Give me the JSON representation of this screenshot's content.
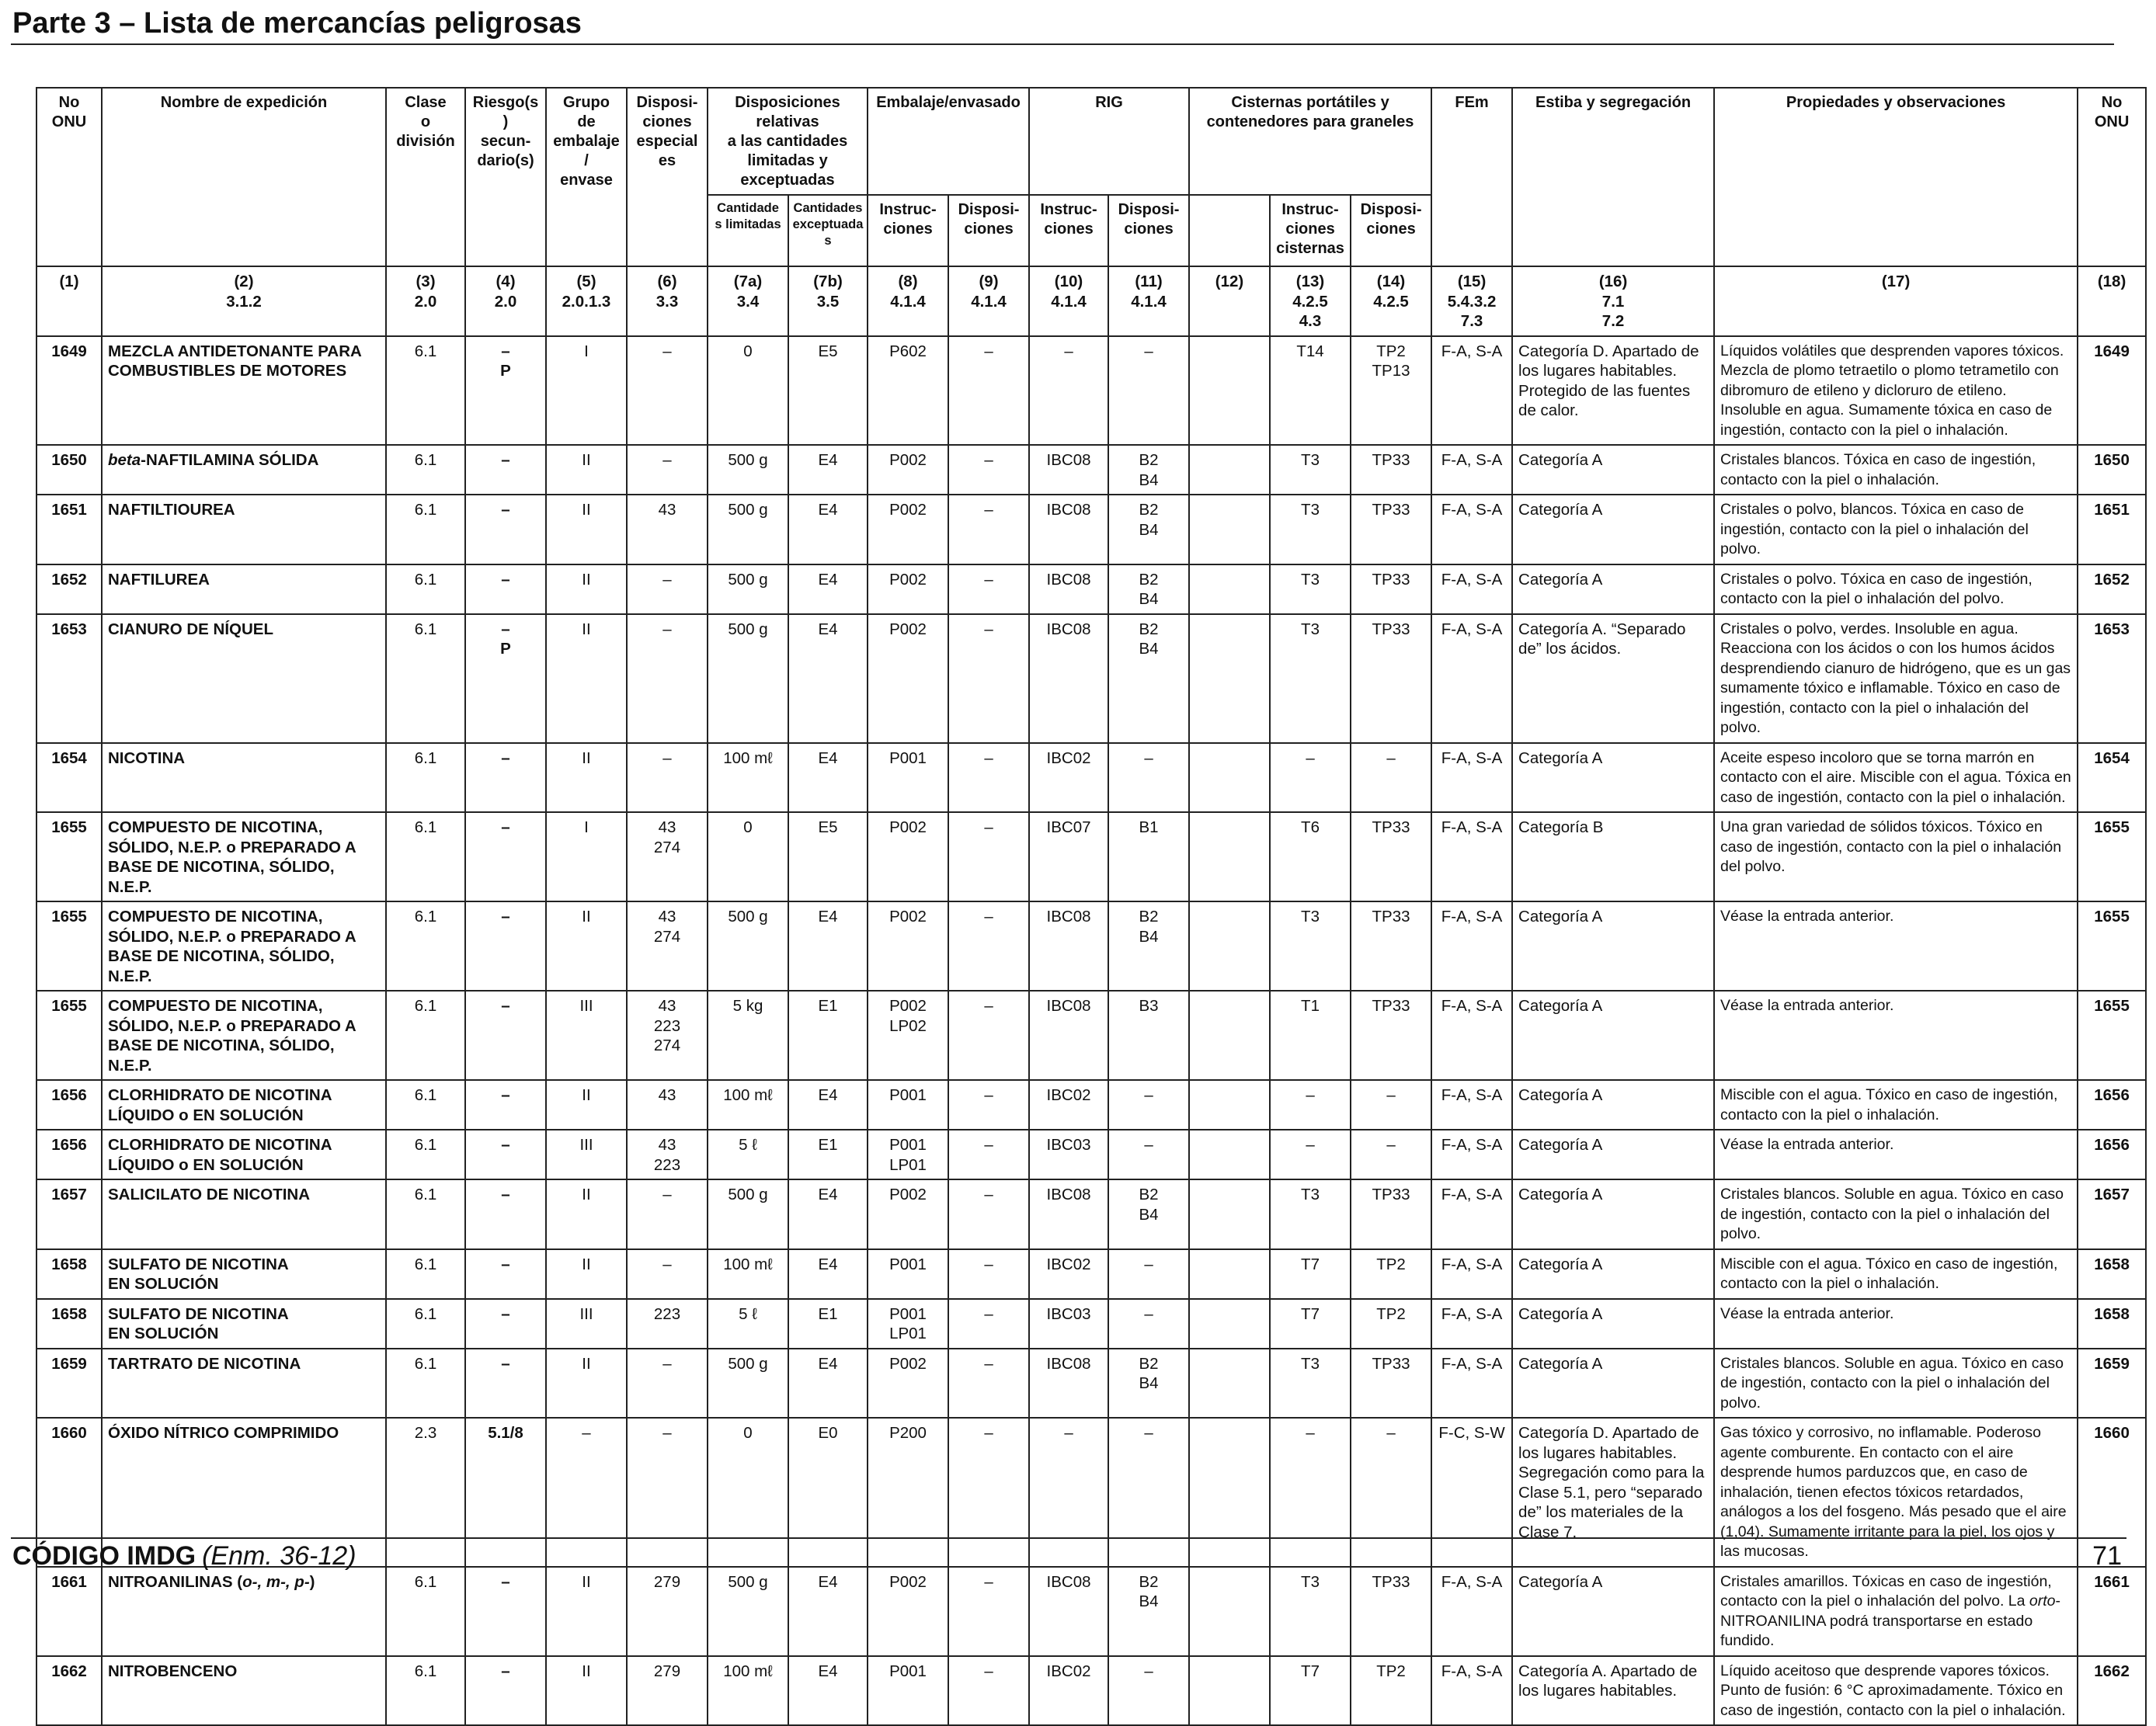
{
  "page": {
    "title": "Parte 3 – Lista de mercancías peligrosas",
    "footer_code": "CÓDIGO IMDG",
    "footer_edition": "(Enm. 36-12)",
    "page_number": "71"
  },
  "header": {
    "un_no": "No\nONU",
    "name": "Nombre de expedición",
    "class": "Clase\no\ndivisión",
    "subsidiary": "Riesgo(s)\nsecun-\ndario(s)",
    "packing_group": "Grupo de\nembalaje/\nenvase",
    "special_provisions": "Disposi-\nciones\nespeciales",
    "limited_excepted": "Disposiciones relativas\na las cantidades\nlimitadas y exceptuadas",
    "limited_quantities": "Cantidade\ns limitadas",
    "excepted_quantities": "Cantidades\nexceptuadas",
    "packaging": "Embalaje/envasado",
    "pack_instructions": "Instruc-\nciones",
    "pack_provisions": "Disposi-\nciones",
    "ibc": "RIG",
    "ibc_instructions": "Instruc-\nciones",
    "ibc_provisions": "Disposi-\nciones",
    "tanks": "Cisternas portátiles y\ncontenedores para graneles",
    "tank_instructions": "Instruc-\nciones\ncisternas",
    "tank_provisions": "Disposi-\nciones",
    "ems": "FEm",
    "stowage": "Estiba y segregación",
    "properties": "Propiedades y observaciones",
    "un_no_right": "No\nONU"
  },
  "column_numbers": [
    "(1)",
    "(2)\n3.1.2",
    "(3)\n2.0",
    "(4)\n2.0",
    "(5)\n2.0.1.3",
    "(6)\n3.3",
    "(7a)\n3.4",
    "(7b)\n3.5",
    "(8)\n4.1.4",
    "(9)\n4.1.4",
    "(10)\n4.1.4",
    "(11)\n4.1.4",
    "(12)",
    "(13)\n4.2.5\n4.3",
    "(14)\n4.2.5",
    "(15)\n5.4.3.2\n7.3",
    "(16)\n7.1\n7.2",
    "(17)",
    "(18)"
  ],
  "rows": [
    {
      "un": "1649",
      "name": "MEZCLA ANTIDETONANTE PARA COMBUSTIBLES DE MOTORES",
      "cls": "6.1",
      "sub": "–\nP",
      "pg": "I",
      "sp": "–",
      "lq": "0",
      "eq": "E5",
      "pi": "P602",
      "pp": "–",
      "ibc": "–",
      "ibcp": "–",
      "c12": "",
      "tank": "T14",
      "tankp": "TP2\nTP13",
      "ems": "F-A, S-A",
      "stow": "Categoría D. Apartado de los lugares habitables. Protegido de las fuentes de calor.",
      "obs": "Líquidos volátiles que desprenden vapores tóxicos. Mezcla de plomo tetraetilo o plomo tetrametilo con dibromuro de etileno y dicloruro de etileno. Insoluble en agua. Sumamente tóxica en caso de ingestión, contacto con la piel o inhalación."
    },
    {
      "un": "1650",
      "name_italic": "beta",
      "name": "-NAFTILAMINA SÓLIDA",
      "cls": "6.1",
      "sub": "–",
      "pg": "II",
      "sp": "–",
      "lq": "500 g",
      "eq": "E4",
      "pi": "P002",
      "pp": "–",
      "ibc": "IBC08",
      "ibcp": "B2\nB4",
      "c12": "",
      "tank": "T3",
      "tankp": "TP33",
      "ems": "F-A, S-A",
      "stow": "Categoría A",
      "obs": "Cristales blancos. Tóxica en caso de ingestión, contacto con la piel o inhalación."
    },
    {
      "un": "1651",
      "name": "NAFTILTIOUREA",
      "cls": "6.1",
      "sub": "–",
      "pg": "II",
      "sp": "43",
      "lq": "500 g",
      "eq": "E4",
      "pi": "P002",
      "pp": "–",
      "ibc": "IBC08",
      "ibcp": "B2\nB4",
      "c12": "",
      "tank": "T3",
      "tankp": "TP33",
      "ems": "F-A, S-A",
      "stow": "Categoría A",
      "obs": "Cristales o polvo, blancos. Tóxica en caso de ingestión, contacto con la piel o inhalación del polvo."
    },
    {
      "un": "1652",
      "name": "NAFTILUREA",
      "cls": "6.1",
      "sub": "–",
      "pg": "II",
      "sp": "–",
      "lq": "500 g",
      "eq": "E4",
      "pi": "P002",
      "pp": "–",
      "ibc": "IBC08",
      "ibcp": "B2\nB4",
      "c12": "",
      "tank": "T3",
      "tankp": "TP33",
      "ems": "F-A, S-A",
      "stow": "Categoría A",
      "obs": "Cristales o polvo. Tóxica en caso de ingestión, contacto con la piel o inhalación del polvo."
    },
    {
      "un": "1653",
      "name": "CIANURO DE NÍQUEL",
      "cls": "6.1",
      "sub": "–\nP",
      "pg": "II",
      "sp": "–",
      "lq": "500 g",
      "eq": "E4",
      "pi": "P002",
      "pp": "–",
      "ibc": "IBC08",
      "ibcp": "B2\nB4",
      "c12": "",
      "tank": "T3",
      "tankp": "TP33",
      "ems": "F-A, S-A",
      "stow": "Categoría A. “Separado de” los ácidos.",
      "obs": "Cristales o polvo, verdes. Insoluble en agua. Reacciona con los ácidos o con los humos ácidos desprendiendo cianuro de hidrógeno, que es un gas sumamente tóxico e inflamable. Tóxico en caso de ingestión, contacto con la piel o inhalación del polvo."
    },
    {
      "un": "1654",
      "name": "NICOTINA",
      "cls": "6.1",
      "sub": "–",
      "pg": "II",
      "sp": "–",
      "lq": "100 mℓ",
      "eq": "E4",
      "pi": "P001",
      "pp": "–",
      "ibc": "IBC02",
      "ibcp": "–",
      "c12": "",
      "tank": "–",
      "tankp": "–",
      "ems": "F-A, S-A",
      "stow": "Categoría A",
      "obs": "Aceite espeso incoloro que se torna marrón en contacto con el aire. Miscible con el agua. Tóxica en caso de ingestión, contacto con la piel o inhalación."
    },
    {
      "un": "1655",
      "name": "COMPUESTO DE NICOTINA, SÓLIDO, N.E.P. o PREPARADO A BASE DE NICOTINA, SÓLIDO, N.E.P.",
      "cls": "6.1",
      "sub": "–",
      "pg": "I",
      "sp": "43\n274",
      "lq": "0",
      "eq": "E5",
      "pi": "P002",
      "pp": "–",
      "ibc": "IBC07",
      "ibcp": "B1",
      "c12": "",
      "tank": "T6",
      "tankp": "TP33",
      "ems": "F-A, S-A",
      "stow": "Categoría B",
      "obs": "Una gran variedad de sólidos tóxicos. Tóxico en caso de ingestión, contacto con la piel o inhalación del polvo."
    },
    {
      "un": "1655",
      "name": "COMPUESTO DE NICOTINA, SÓLIDO, N.E.P. o PREPARADO A BASE DE NICOTINA, SÓLIDO, N.E.P.",
      "cls": "6.1",
      "sub": "–",
      "pg": "II",
      "sp": "43\n274",
      "lq": "500 g",
      "eq": "E4",
      "pi": "P002",
      "pp": "–",
      "ibc": "IBC08",
      "ibcp": "B2\nB4",
      "c12": "",
      "tank": "T3",
      "tankp": "TP33",
      "ems": "F-A, S-A",
      "stow": "Categoría A",
      "obs": "Véase la entrada anterior."
    },
    {
      "un": "1655",
      "name": "COMPUESTO DE NICOTINA, SÓLIDO, N.E.P. o PREPARADO A BASE DE NICOTINA, SÓLIDO, N.E.P.",
      "cls": "6.1",
      "sub": "–",
      "pg": "III",
      "sp": "43\n223\n274",
      "lq": "5 kg",
      "eq": "E1",
      "pi": "P002\nLP02",
      "pp": "–",
      "ibc": "IBC08",
      "ibcp": "B3",
      "c12": "",
      "tank": "T1",
      "tankp": "TP33",
      "ems": "F-A, S-A",
      "stow": "Categoría A",
      "obs": "Véase la entrada anterior."
    },
    {
      "un": "1656",
      "name": "CLORHIDRATO DE NICOTINA LÍQUIDO o EN SOLUCIÓN",
      "cls": "6.1",
      "sub": "–",
      "pg": "II",
      "sp": "43",
      "lq": "100 mℓ",
      "eq": "E4",
      "pi": "P001",
      "pp": "–",
      "ibc": "IBC02",
      "ibcp": "–",
      "c12": "",
      "tank": "–",
      "tankp": "–",
      "ems": "F-A, S-A",
      "stow": "Categoría A",
      "obs": "Miscible con el agua. Tóxico en caso de ingestión, contacto con la piel o inhalación."
    },
    {
      "un": "1656",
      "name": "CLORHIDRATO DE NICOTINA LÍQUIDO o EN SOLUCIÓN",
      "cls": "6.1",
      "sub": "–",
      "pg": "III",
      "sp": "43\n223",
      "lq": "5 ℓ",
      "eq": "E1",
      "pi": "P001\nLP01",
      "pp": "–",
      "ibc": "IBC03",
      "ibcp": "–",
      "c12": "",
      "tank": "–",
      "tankp": "–",
      "ems": "F-A, S-A",
      "stow": "Categoría A",
      "obs": "Véase la entrada anterior."
    },
    {
      "un": "1657",
      "name": "SALICILATO DE NICOTINA",
      "cls": "6.1",
      "sub": "–",
      "pg": "II",
      "sp": "–",
      "lq": "500 g",
      "eq": "E4",
      "pi": "P002",
      "pp": "–",
      "ibc": "IBC08",
      "ibcp": "B2\nB4",
      "c12": "",
      "tank": "T3",
      "tankp": "TP33",
      "ems": "F-A, S-A",
      "stow": "Categoría A",
      "obs": "Cristales blancos. Soluble en agua. Tóxico en caso de ingestión, contacto con la piel o inhalación del polvo."
    },
    {
      "un": "1658",
      "name": "SULFATO DE NICOTINA\nEN SOLUCIÓN",
      "cls": "6.1",
      "sub": "–",
      "pg": "II",
      "sp": "–",
      "lq": "100 mℓ",
      "eq": "E4",
      "pi": "P001",
      "pp": "–",
      "ibc": "IBC02",
      "ibcp": "–",
      "c12": "",
      "tank": "T7",
      "tankp": "TP2",
      "ems": "F-A, S-A",
      "stow": "Categoría A",
      "obs": "Miscible con el agua. Tóxico en caso de ingestión, contacto con la piel o inhalación."
    },
    {
      "un": "1658",
      "name": "SULFATO DE NICOTINA\nEN SOLUCIÓN",
      "cls": "6.1",
      "sub": "–",
      "pg": "III",
      "sp": "223",
      "lq": "5 ℓ",
      "eq": "E1",
      "pi": "P001\nLP01",
      "pp": "–",
      "ibc": "IBC03",
      "ibcp": "–",
      "c12": "",
      "tank": "T7",
      "tankp": "TP2",
      "ems": "F-A, S-A",
      "stow": "Categoría A",
      "obs": "Véase la entrada anterior."
    },
    {
      "un": "1659",
      "name": "TARTRATO DE NICOTINA",
      "cls": "6.1",
      "sub": "–",
      "pg": "II",
      "sp": "–",
      "lq": "500 g",
      "eq": "E4",
      "pi": "P002",
      "pp": "–",
      "ibc": "IBC08",
      "ibcp": "B2\nB4",
      "c12": "",
      "tank": "T3",
      "tankp": "TP33",
      "ems": "F-A, S-A",
      "stow": "Categoría A",
      "obs": "Cristales blancos. Soluble en agua. Tóxico en caso de ingestión, contacto con la piel o inhalación del polvo."
    },
    {
      "un": "1660",
      "name": "ÓXIDO NÍTRICO COMPRIMIDO",
      "cls": "2.3",
      "sub": "5.1/8",
      "pg": "–",
      "sp": "–",
      "lq": "0",
      "eq": "E0",
      "pi": "P200",
      "pp": "–",
      "ibc": "–",
      "ibcp": "–",
      "c12": "",
      "tank": "–",
      "tankp": "–",
      "ems": "F-C, S-W",
      "stow": "Categoría D. Apartado de los lugares habitables. Segregación como para la Clase 5.1, pero “separado de” los materiales de la Clase 7.",
      "obs": "Gas tóxico y corrosivo, no inflamable. Poderoso agente comburente. En contacto con el aire desprende humos parduzcos que, en caso de inhalación, tienen efectos tóxicos retardados, análogos a los del fosgeno. Más pesado que el aire (1,04). Sumamente irritante para la piel, los ojos y las mucosas."
    },
    {
      "un": "1661",
      "name": "NITROANILINAS (",
      "name_italic_mid": "o-, m-, p-",
      "name_end": ")",
      "cls": "6.1",
      "sub": "–",
      "pg": "II",
      "sp": "279",
      "lq": "500 g",
      "eq": "E4",
      "pi": "P002",
      "pp": "–",
      "ibc": "IBC08",
      "ibcp": "B2\nB4",
      "c12": "",
      "tank": "T3",
      "tankp": "TP33",
      "ems": "F-A, S-A",
      "stow": "Categoría A",
      "obs_pre": "Cristales amarillos. Tóxicas en caso de ingestión, contacto con la piel o inhalación del polvo. La ",
      "obs_italic": "orto",
      "obs_post": "-NITROANILINA podrá transportarse en estado fundido."
    },
    {
      "un": "1662",
      "name": "NITROBENCENO",
      "cls": "6.1",
      "sub": "–",
      "pg": "II",
      "sp": "279",
      "lq": "100 mℓ",
      "eq": "E4",
      "pi": "P001",
      "pp": "–",
      "ibc": "IBC02",
      "ibcp": "–",
      "c12": "",
      "tank": "T7",
      "tankp": "TP2",
      "ems": "F-A, S-A",
      "stow": "Categoría A. Apartado de los lugares habitables.",
      "obs": "Líquido aceitoso que desprende vapores tóxicos. Punto de fusión: 6 °C aproximadamente. Tóxico en caso de ingestión, contacto con la piel o inhalación."
    }
  ]
}
